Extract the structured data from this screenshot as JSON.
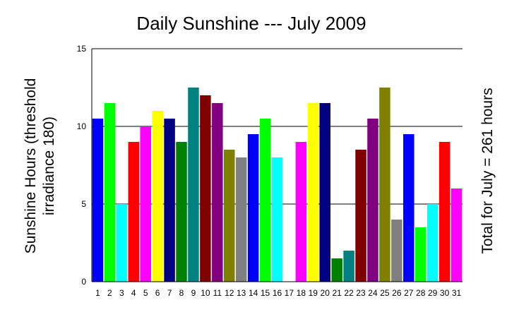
{
  "chart_data": {
    "type": "bar",
    "title": "Daily Sunshine --- July 2009",
    "ylabel_line1": "Sunshine Hours (threshold",
    "ylabel_line2": "irradiance 180)",
    "right_label": "Total for July = 261 hours",
    "ylim": [
      0,
      15
    ],
    "yticks": [
      0,
      5,
      10,
      15
    ],
    "grid": true,
    "categories": [
      "1",
      "2",
      "3",
      "4",
      "5",
      "6",
      "7",
      "8",
      "9",
      "10",
      "11",
      "12",
      "13",
      "14",
      "15",
      "16",
      "17",
      "18",
      "19",
      "20",
      "21",
      "22",
      "23",
      "24",
      "25",
      "26",
      "27",
      "28",
      "29",
      "30",
      "31"
    ],
    "values": [
      10.5,
      11.5,
      5,
      9,
      10,
      11,
      10.5,
      9,
      12.5,
      12,
      11.5,
      8.5,
      8,
      9.5,
      10.5,
      8,
      0,
      9,
      11.5,
      11.5,
      1.5,
      2,
      8.5,
      10.5,
      12.5,
      4,
      9.5,
      3.5,
      5,
      9,
      6
    ],
    "colors": [
      "#0000ff",
      "#00ff00",
      "#00ffff",
      "#ff0000",
      "#ff00ff",
      "#ffff00",
      "#000080",
      "#008000",
      "#008080",
      "#800000",
      "#800080",
      "#808000",
      "#808080",
      "#0000ff",
      "#00ff00",
      "#00ffff",
      "#ff0000",
      "#ff00ff",
      "#ffff00",
      "#000080",
      "#008000",
      "#008080",
      "#800000",
      "#800080",
      "#808000",
      "#808080",
      "#0000ff",
      "#00ff00",
      "#00ffff",
      "#ff0000",
      "#ff00ff"
    ]
  }
}
